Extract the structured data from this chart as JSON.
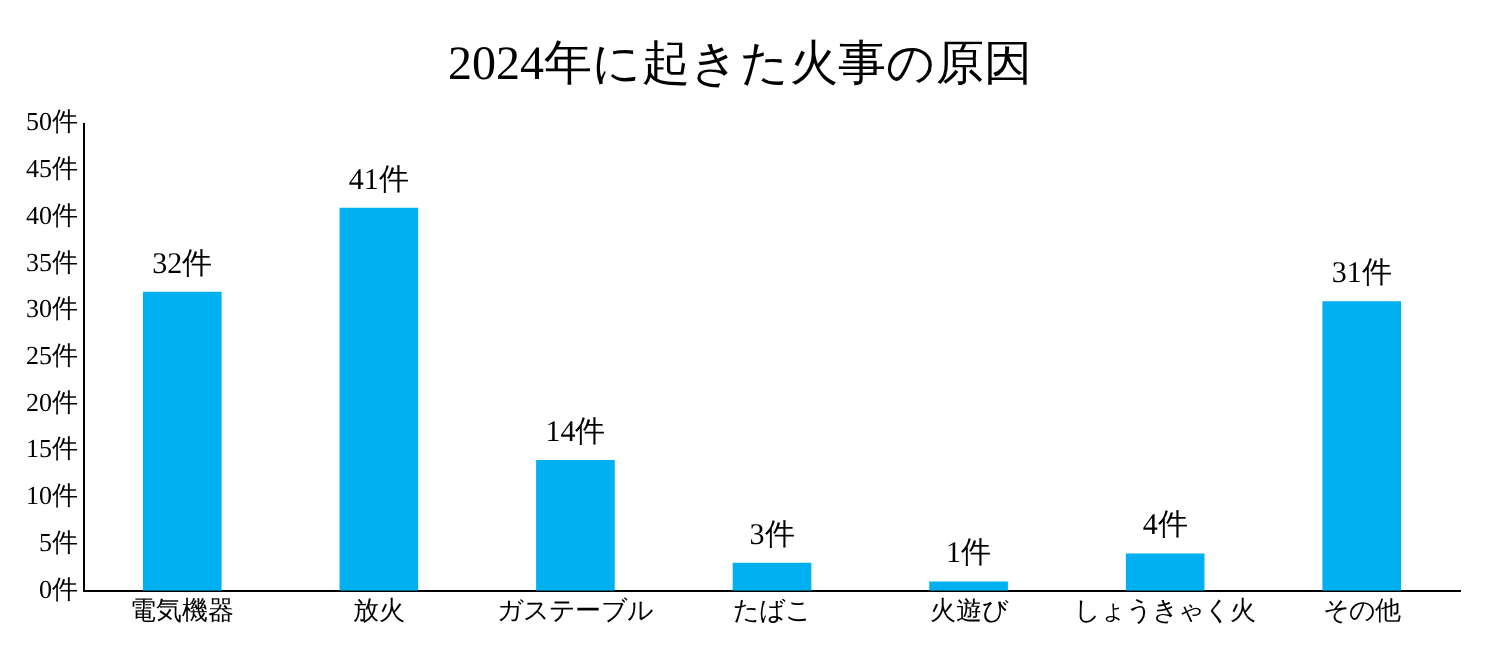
{
  "chart_data": {
    "type": "bar",
    "title": "2024年に起きた火事の原因",
    "categories": [
      "電気機器",
      "放火",
      "ガステーブル",
      "たばこ",
      "火遊び",
      "しょうきゃく火",
      "その他"
    ],
    "values": [
      32,
      41,
      14,
      3,
      1,
      4,
      31
    ],
    "value_labels": [
      "32件",
      "41件",
      "14件",
      "3件",
      "1件",
      "4件",
      "31件"
    ],
    "color": "#00b0f0",
    "ylim": [
      0,
      50
    ],
    "yticks": [
      {
        "value": 0,
        "label": "0件"
      },
      {
        "value": 5,
        "label": "5件"
      },
      {
        "value": 10,
        "label": "10件"
      },
      {
        "value": 15,
        "label": "15件"
      },
      {
        "value": 20,
        "label": "20件"
      },
      {
        "value": 25,
        "label": "25件"
      },
      {
        "value": 30,
        "label": "30件"
      },
      {
        "value": 35,
        "label": "35件"
      },
      {
        "value": 40,
        "label": "40件"
      },
      {
        "value": 45,
        "label": "45件"
      },
      {
        "value": 50,
        "label": "50件"
      }
    ],
    "grid": false,
    "legend": false
  }
}
